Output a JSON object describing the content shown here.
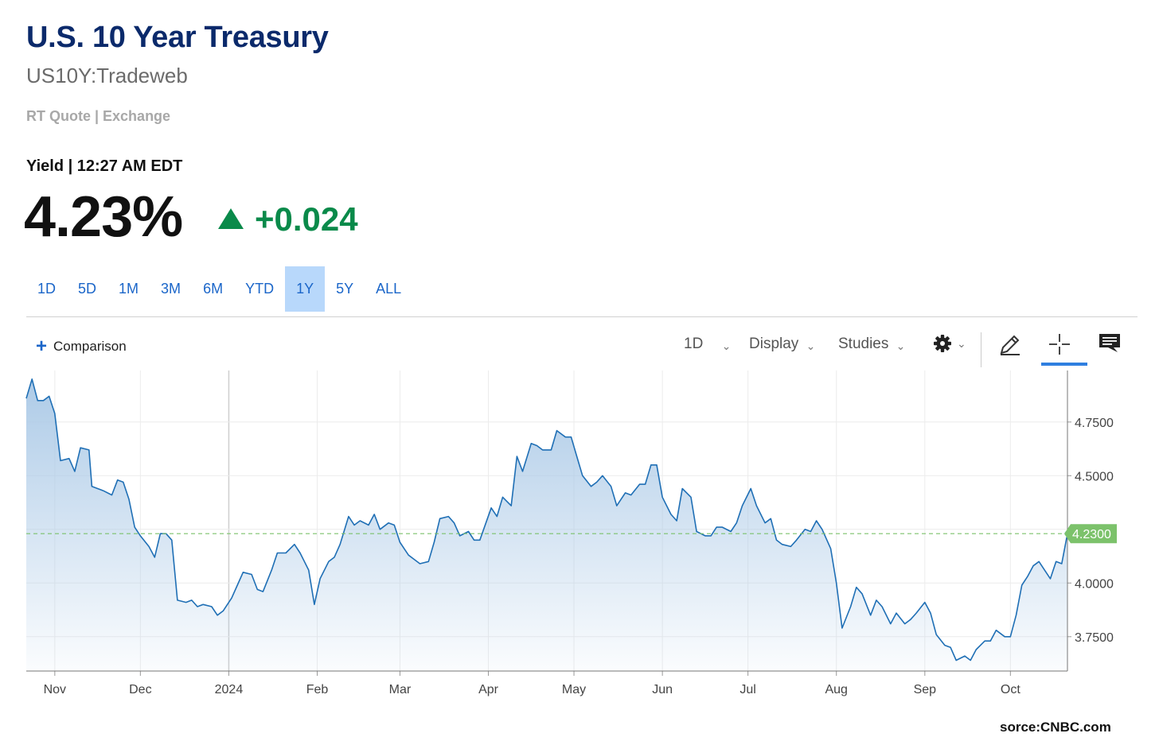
{
  "header": {
    "title": "U.S. 10 Year Treasury",
    "symbol": "US10Y:Tradeweb",
    "quote_type": "RT Quote | Exchange",
    "yield_line": "Yield | 12:27 AM EDT",
    "price": "4.23%",
    "change": "+0.024",
    "change_color": "#0a8a4a"
  },
  "ranges": [
    {
      "label": "1D",
      "active": false
    },
    {
      "label": "5D",
      "active": false
    },
    {
      "label": "1M",
      "active": false
    },
    {
      "label": "3M",
      "active": false
    },
    {
      "label": "6M",
      "active": false
    },
    {
      "label": "YTD",
      "active": false
    },
    {
      "label": "1Y",
      "active": true
    },
    {
      "label": "5Y",
      "active": false
    },
    {
      "label": "ALL",
      "active": false
    }
  ],
  "toolbar": {
    "comparison_label": "Comparison",
    "interval_label": "1D",
    "display_label": "Display",
    "studies_label": "Studies",
    "icons": [
      "settings-icon",
      "pencil-icon",
      "crosshair-icon",
      "chat-icon"
    ]
  },
  "source": "sorce:CNBC.com",
  "chart_data": {
    "type": "area",
    "title": "",
    "xlabel": "",
    "ylabel": "",
    "x_ticks": [
      "Nov",
      "Dec",
      "2024",
      "Feb",
      "Mar",
      "Apr",
      "May",
      "Jun",
      "Jul",
      "Aug",
      "Sep",
      "Oct"
    ],
    "x_tick_dates": [
      "2023-11-01",
      "2023-12-01",
      "2024-01-01",
      "2024-02-01",
      "2024-03-01",
      "2024-04-01",
      "2024-05-01",
      "2024-06-01",
      "2024-07-01",
      "2024-08-01",
      "2024-09-01",
      "2024-10-01"
    ],
    "y_ticks": [
      3.75,
      4.0,
      4.25,
      4.5,
      4.75
    ],
    "y_tick_labels": [
      "3.7500",
      "4.0000",
      "4.2500",
      "4.5000",
      "4.7500"
    ],
    "ylim": [
      3.59,
      4.99
    ],
    "xlim": [
      "2023-10-22",
      "2024-10-21"
    ],
    "grid": true,
    "line_color": "#1f6fb5",
    "fill_color": "#a9c8e6",
    "reference_line": {
      "value": 4.23,
      "color": "#7cc26b",
      "style": "dashed"
    },
    "last_value_label": "4.2300",
    "last_value_color": "#7cc26b",
    "series": [
      {
        "values": [
          [
            "2023-10-22",
            4.86
          ],
          [
            "2023-10-24",
            4.95
          ],
          [
            "2023-10-26",
            4.85
          ],
          [
            "2023-10-28",
            4.85
          ],
          [
            "2023-10-30",
            4.87
          ],
          [
            "2023-11-01",
            4.79
          ],
          [
            "2023-11-03",
            4.57
          ],
          [
            "2023-11-06",
            4.58
          ],
          [
            "2023-11-08",
            4.52
          ],
          [
            "2023-11-10",
            4.63
          ],
          [
            "2023-11-13",
            4.62
          ],
          [
            "2023-11-14",
            4.45
          ],
          [
            "2023-11-16",
            4.44
          ],
          [
            "2023-11-18",
            4.43
          ],
          [
            "2023-11-21",
            4.41
          ],
          [
            "2023-11-23",
            4.48
          ],
          [
            "2023-11-25",
            4.47
          ],
          [
            "2023-11-27",
            4.39
          ],
          [
            "2023-11-29",
            4.26
          ],
          [
            "2023-12-01",
            4.22
          ],
          [
            "2023-12-04",
            4.17
          ],
          [
            "2023-12-06",
            4.12
          ],
          [
            "2023-12-08",
            4.23
          ],
          [
            "2023-12-10",
            4.23
          ],
          [
            "2023-12-12",
            4.2
          ],
          [
            "2023-12-14",
            3.92
          ],
          [
            "2023-12-17",
            3.91
          ],
          [
            "2023-12-19",
            3.92
          ],
          [
            "2023-12-21",
            3.89
          ],
          [
            "2023-12-23",
            3.9
          ],
          [
            "2023-12-26",
            3.89
          ],
          [
            "2023-12-28",
            3.85
          ],
          [
            "2023-12-30",
            3.87
          ],
          [
            "2024-01-02",
            3.93
          ],
          [
            "2024-01-04",
            3.99
          ],
          [
            "2024-01-06",
            4.05
          ],
          [
            "2024-01-09",
            4.04
          ],
          [
            "2024-01-11",
            3.97
          ],
          [
            "2024-01-13",
            3.96
          ],
          [
            "2024-01-16",
            4.06
          ],
          [
            "2024-01-18",
            4.14
          ],
          [
            "2024-01-21",
            4.14
          ],
          [
            "2024-01-24",
            4.18
          ],
          [
            "2024-01-26",
            4.14
          ],
          [
            "2024-01-29",
            4.06
          ],
          [
            "2024-01-31",
            3.9
          ],
          [
            "2024-02-02",
            4.02
          ],
          [
            "2024-02-05",
            4.1
          ],
          [
            "2024-02-07",
            4.12
          ],
          [
            "2024-02-09",
            4.18
          ],
          [
            "2024-02-12",
            4.31
          ],
          [
            "2024-02-14",
            4.27
          ],
          [
            "2024-02-16",
            4.29
          ],
          [
            "2024-02-19",
            4.27
          ],
          [
            "2024-02-21",
            4.32
          ],
          [
            "2024-02-23",
            4.25
          ],
          [
            "2024-02-26",
            4.28
          ],
          [
            "2024-02-28",
            4.27
          ],
          [
            "2024-03-01",
            4.19
          ],
          [
            "2024-03-04",
            4.13
          ],
          [
            "2024-03-06",
            4.11
          ],
          [
            "2024-03-08",
            4.09
          ],
          [
            "2024-03-11",
            4.1
          ],
          [
            "2024-03-13",
            4.19
          ],
          [
            "2024-03-15",
            4.3
          ],
          [
            "2024-03-18",
            4.31
          ],
          [
            "2024-03-20",
            4.28
          ],
          [
            "2024-03-22",
            4.22
          ],
          [
            "2024-03-25",
            4.24
          ],
          [
            "2024-03-27",
            4.2
          ],
          [
            "2024-03-29",
            4.2
          ],
          [
            "2024-04-02",
            4.35
          ],
          [
            "2024-04-04",
            4.31
          ],
          [
            "2024-04-06",
            4.4
          ],
          [
            "2024-04-09",
            4.36
          ],
          [
            "2024-04-11",
            4.59
          ],
          [
            "2024-04-13",
            4.52
          ],
          [
            "2024-04-16",
            4.65
          ],
          [
            "2024-04-18",
            4.64
          ],
          [
            "2024-04-20",
            4.62
          ],
          [
            "2024-04-23",
            4.62
          ],
          [
            "2024-04-25",
            4.71
          ],
          [
            "2024-04-28",
            4.68
          ],
          [
            "2024-04-30",
            4.68
          ],
          [
            "2024-05-02",
            4.59
          ],
          [
            "2024-05-04",
            4.5
          ],
          [
            "2024-05-07",
            4.45
          ],
          [
            "2024-05-09",
            4.47
          ],
          [
            "2024-05-11",
            4.5
          ],
          [
            "2024-05-14",
            4.45
          ],
          [
            "2024-05-16",
            4.36
          ],
          [
            "2024-05-19",
            4.42
          ],
          [
            "2024-05-21",
            4.41
          ],
          [
            "2024-05-24",
            4.46
          ],
          [
            "2024-05-26",
            4.46
          ],
          [
            "2024-05-28",
            4.55
          ],
          [
            "2024-05-30",
            4.55
          ],
          [
            "2024-06-01",
            4.4
          ],
          [
            "2024-06-04",
            4.32
          ],
          [
            "2024-06-06",
            4.29
          ],
          [
            "2024-06-08",
            4.44
          ],
          [
            "2024-06-11",
            4.4
          ],
          [
            "2024-06-13",
            4.24
          ],
          [
            "2024-06-16",
            4.22
          ],
          [
            "2024-06-18",
            4.22
          ],
          [
            "2024-06-20",
            4.26
          ],
          [
            "2024-06-22",
            4.26
          ],
          [
            "2024-06-25",
            4.24
          ],
          [
            "2024-06-27",
            4.28
          ],
          [
            "2024-06-29",
            4.36
          ],
          [
            "2024-07-02",
            4.44
          ],
          [
            "2024-07-04",
            4.36
          ],
          [
            "2024-07-07",
            4.28
          ],
          [
            "2024-07-09",
            4.3
          ],
          [
            "2024-07-11",
            4.2
          ],
          [
            "2024-07-13",
            4.18
          ],
          [
            "2024-07-16",
            4.17
          ],
          [
            "2024-07-18",
            4.2
          ],
          [
            "2024-07-21",
            4.25
          ],
          [
            "2024-07-23",
            4.24
          ],
          [
            "2024-07-25",
            4.29
          ],
          [
            "2024-07-27",
            4.25
          ],
          [
            "2024-07-30",
            4.16
          ],
          [
            "2024-08-01",
            4.0
          ],
          [
            "2024-08-03",
            3.79
          ],
          [
            "2024-08-06",
            3.89
          ],
          [
            "2024-08-08",
            3.98
          ],
          [
            "2024-08-10",
            3.95
          ],
          [
            "2024-08-13",
            3.85
          ],
          [
            "2024-08-15",
            3.92
          ],
          [
            "2024-08-17",
            3.89
          ],
          [
            "2024-08-20",
            3.81
          ],
          [
            "2024-08-22",
            3.86
          ],
          [
            "2024-08-25",
            3.81
          ],
          [
            "2024-08-27",
            3.83
          ],
          [
            "2024-08-29",
            3.86
          ],
          [
            "2024-09-01",
            3.91
          ],
          [
            "2024-09-03",
            3.86
          ],
          [
            "2024-09-05",
            3.76
          ],
          [
            "2024-09-08",
            3.71
          ],
          [
            "2024-09-10",
            3.7
          ],
          [
            "2024-09-12",
            3.64
          ],
          [
            "2024-09-15",
            3.66
          ],
          [
            "2024-09-17",
            3.64
          ],
          [
            "2024-09-19",
            3.69
          ],
          [
            "2024-09-22",
            3.73
          ],
          [
            "2024-09-24",
            3.73
          ],
          [
            "2024-09-26",
            3.78
          ],
          [
            "2024-09-29",
            3.75
          ],
          [
            "2024-10-01",
            3.75
          ],
          [
            "2024-10-03",
            3.85
          ],
          [
            "2024-10-05",
            3.99
          ],
          [
            "2024-10-07",
            4.03
          ],
          [
            "2024-10-09",
            4.08
          ],
          [
            "2024-10-11",
            4.1
          ],
          [
            "2024-10-13",
            4.06
          ],
          [
            "2024-10-15",
            4.02
          ],
          [
            "2024-10-17",
            4.1
          ],
          [
            "2024-10-19",
            4.09
          ],
          [
            "2024-10-21",
            4.23
          ]
        ]
      }
    ]
  }
}
